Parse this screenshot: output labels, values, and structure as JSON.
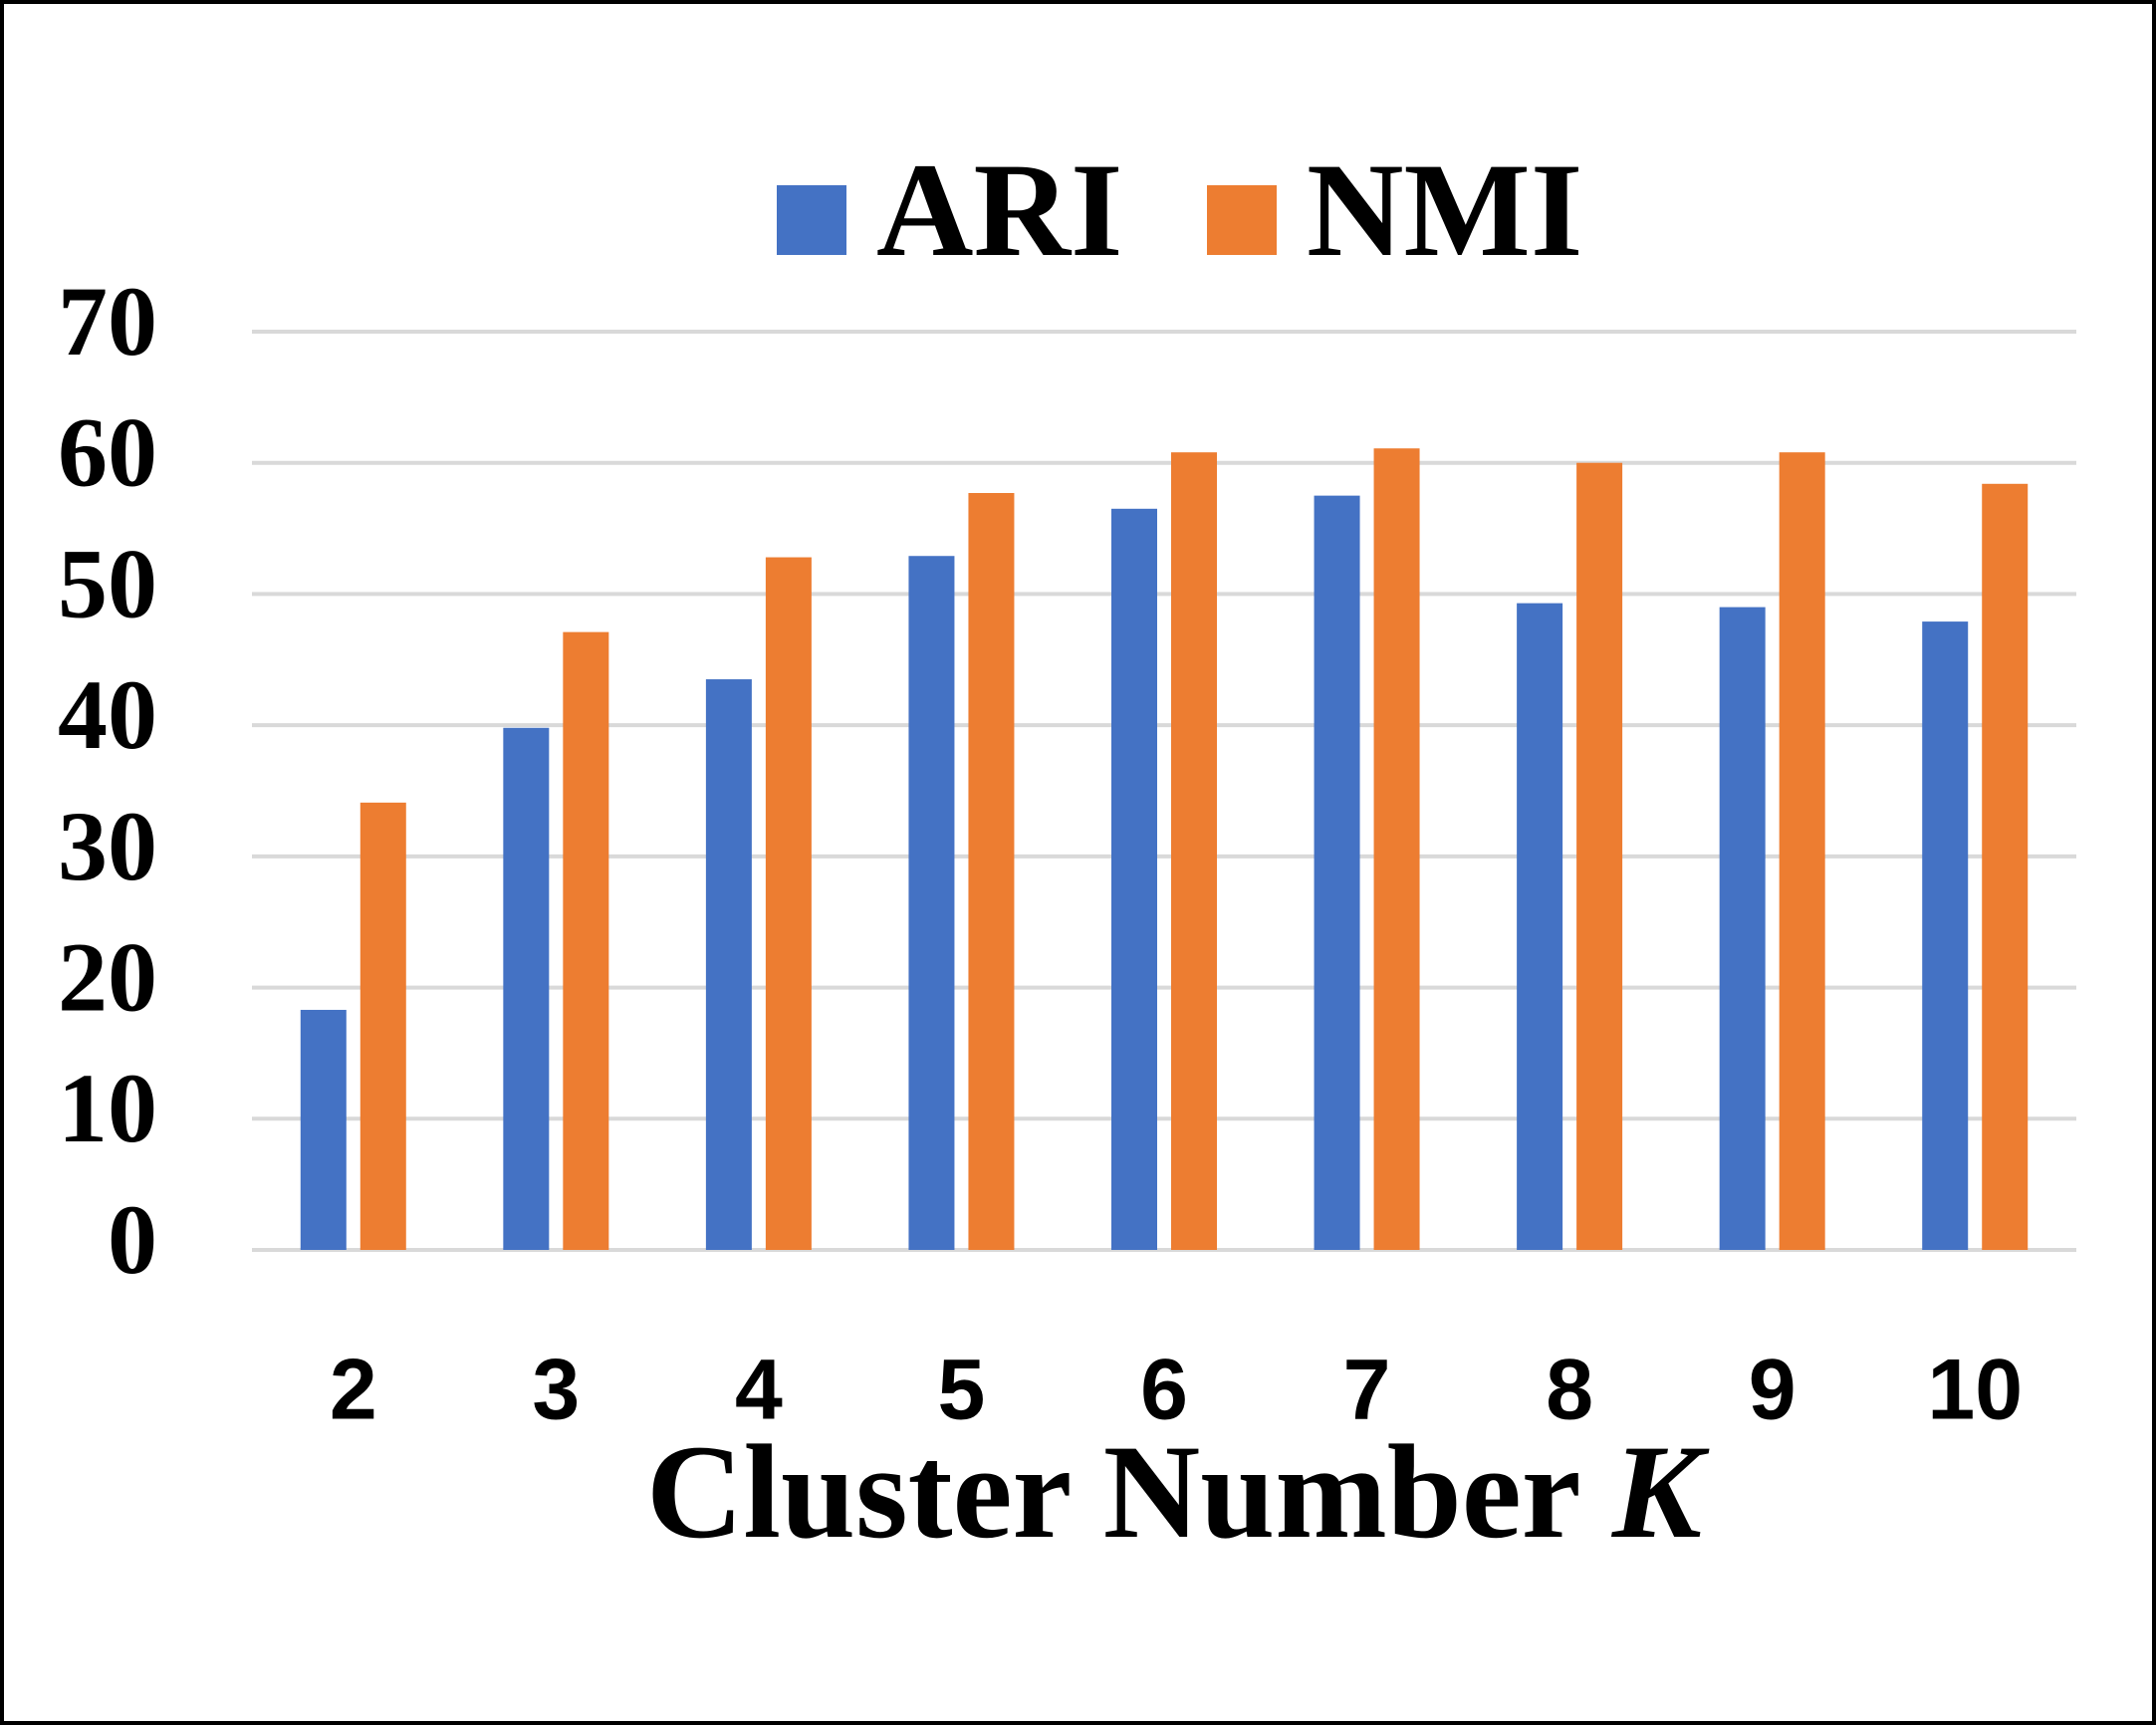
{
  "chart_data": {
    "type": "bar",
    "x_label": "Cluster Number K",
    "categories": [
      "2",
      "3",
      "4",
      "5",
      "6",
      "7",
      "8",
      "9",
      "10"
    ],
    "series": [
      {
        "name": "ARI",
        "color": "#4472c4",
        "values": [
          18.3,
          39.8,
          43.5,
          52.9,
          56.5,
          57.5,
          49.3,
          49.0,
          47.9
        ]
      },
      {
        "name": "NMI",
        "color": "#ed7d31",
        "values": [
          34.1,
          47.1,
          52.8,
          57.7,
          60.8,
          61.1,
          60.0,
          60.8,
          58.4
        ]
      }
    ],
    "ylim": [
      0,
      70
    ],
    "yticks": [
      0,
      10,
      20,
      30,
      40,
      50,
      60,
      70
    ],
    "grid": true,
    "legend": "top"
  }
}
